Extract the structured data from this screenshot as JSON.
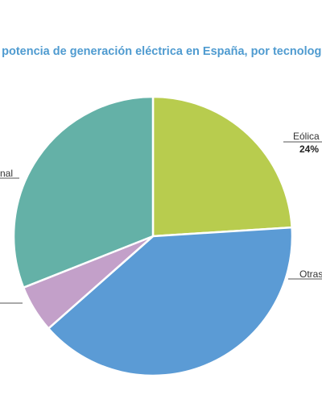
{
  "chart_data": {
    "type": "pie",
    "title": "la potencia de generación eléctrica en España, por tecnolog",
    "slices": [
      {
        "label": "Eólica",
        "pct_label": "24%",
        "value": 24,
        "color": "#b8cc4e"
      },
      {
        "label": "Otras",
        "pct_label": "",
        "value": 39.5,
        "color": "#5b9bd5"
      },
      {
        "label": "",
        "pct_label": "",
        "value": 5.5,
        "color": "#c3a0c9"
      },
      {
        "label": "nal",
        "pct_label": "",
        "value": 31,
        "color": "#64b1a7"
      }
    ],
    "start_angle_deg": 0,
    "legend": "none"
  }
}
